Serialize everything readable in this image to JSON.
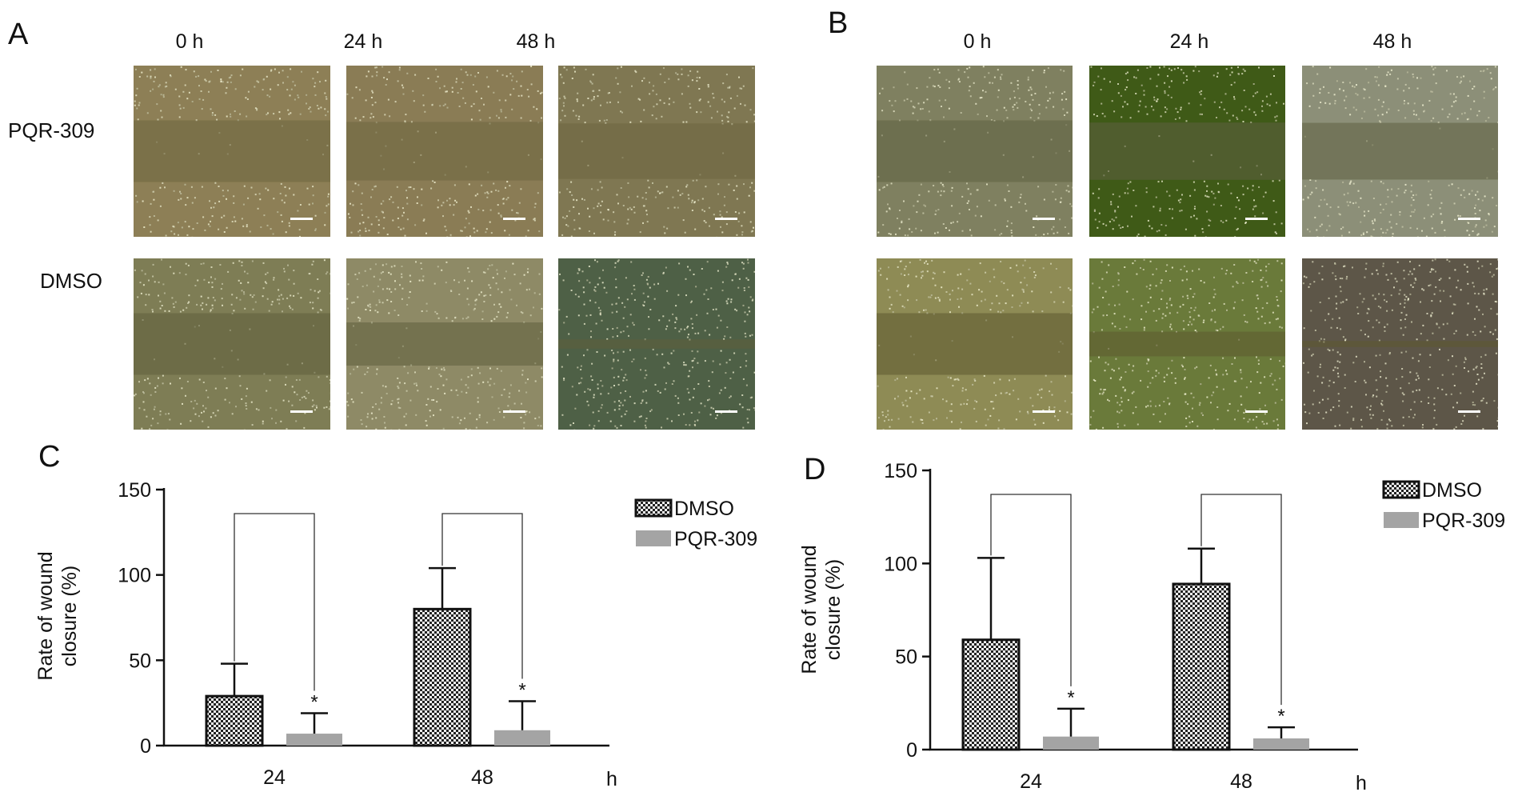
{
  "panels": {
    "A": {
      "letter": "A",
      "times": [
        "0 h",
        "24 h",
        "48 h"
      ],
      "rows": [
        {
          "label": "PQR-309",
          "tints": [
            "#8d7f56",
            "#8a7c55",
            "#7f7752"
          ],
          "gap_color": "#6e6640",
          "closure": [
            0,
            0.05,
            0.1
          ]
        },
        {
          "label": "DMSO",
          "tints": [
            "#7e7d55",
            "#8e8a66",
            "#4e6046"
          ],
          "gap_color": "#5f5e3c",
          "closure": [
            0,
            0.3,
            0.85
          ]
        }
      ]
    },
    "B": {
      "letter": "B",
      "times": [
        "0 h",
        "24 h",
        "48 h"
      ],
      "rows": [
        {
          "label": "",
          "tints": [
            "#7f8060",
            "#3f5a17",
            "#8c8f78"
          ],
          "gap_color": "#5e6142",
          "closure": [
            0,
            0.07,
            0.08
          ]
        },
        {
          "label": "",
          "tints": [
            "#8e8b55",
            "#6a7a3a",
            "#5d5648"
          ],
          "gap_color": "#5c5a30",
          "closure": [
            0,
            0.6,
            0.9
          ]
        }
      ]
    }
  },
  "chart_data": [
    {
      "panel": "C",
      "type": "bar",
      "categories": [
        "24",
        "48"
      ],
      "xunit": "h",
      "ylabel": "Rate of wound closure (%)",
      "ylim": [
        0,
        150
      ],
      "yticks": [
        0,
        50,
        100,
        150
      ],
      "series": [
        {
          "name": "DMSO",
          "pattern": "checker",
          "values": [
            29,
            80
          ],
          "errors": [
            19,
            24
          ]
        },
        {
          "name": "PQR-309",
          "color": "#a4a4a4",
          "values": [
            7,
            9
          ],
          "errors": [
            12,
            17
          ]
        }
      ],
      "significance": [
        "*",
        "*"
      ],
      "legend_position": "top-right"
    },
    {
      "panel": "D",
      "type": "bar",
      "categories": [
        "24",
        "48"
      ],
      "xunit": "h",
      "ylabel": "Rate of wound closure (%)",
      "ylim": [
        0,
        150
      ],
      "yticks": [
        0,
        50,
        100,
        150
      ],
      "series": [
        {
          "name": "DMSO",
          "pattern": "checker",
          "values": [
            59,
            89
          ],
          "errors": [
            44,
            19
          ]
        },
        {
          "name": "PQR-309",
          "color": "#a4a4a4",
          "values": [
            7,
            6
          ],
          "errors": [
            15,
            6
          ]
        }
      ],
      "significance": [
        "*",
        "*"
      ],
      "legend_position": "top-right"
    }
  ]
}
